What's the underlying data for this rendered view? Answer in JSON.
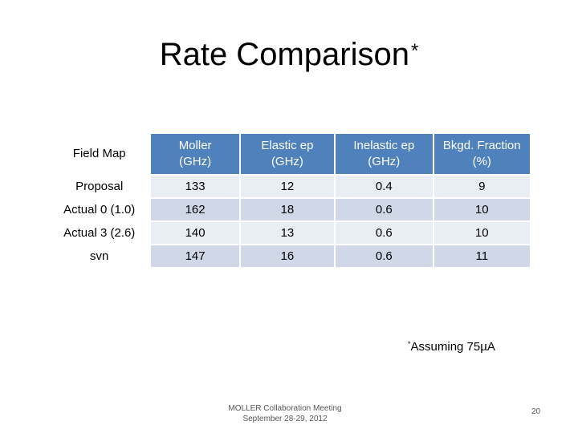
{
  "slide": {
    "title": "Rate Comparison",
    "title_mark": "*",
    "footnote_mark": "*",
    "footnote_text": "Assuming 75µA",
    "footer_line1": "MOLLER Collaboration Meeting",
    "footer_line2": "September 28-29, 2012",
    "page_number": "20"
  },
  "table": {
    "headers": {
      "field_map": "Field Map",
      "moller_1": "Moller",
      "moller_2": "(GHz)",
      "elastic_1": "Elastic ep",
      "elastic_2": "(GHz)",
      "inelastic_1": "Inelastic ep",
      "inelastic_2": "(GHz)",
      "bkgd_1": "Bkgd. Fraction",
      "bkgd_2": "(%)"
    },
    "rows": [
      {
        "field_map": "Proposal",
        "moller": "133",
        "elastic": "12",
        "inelastic": "0.4",
        "bkgd": "9"
      },
      {
        "field_map": "Actual 0 (1.0)",
        "moller": "162",
        "elastic": "18",
        "inelastic": "0.6",
        "bkgd": "10"
      },
      {
        "field_map": "Actual 3 (2.6)",
        "moller": "140",
        "elastic": "13",
        "inelastic": "0.6",
        "bkgd": "10"
      },
      {
        "field_map": "svn",
        "moller": "147",
        "elastic": "16",
        "inelastic": "0.6",
        "bkgd": "11"
      }
    ]
  },
  "colors": {
    "header_fill": "#4f81bd",
    "row_light": "#e9edf4",
    "row_dark": "#d0d8e8"
  }
}
